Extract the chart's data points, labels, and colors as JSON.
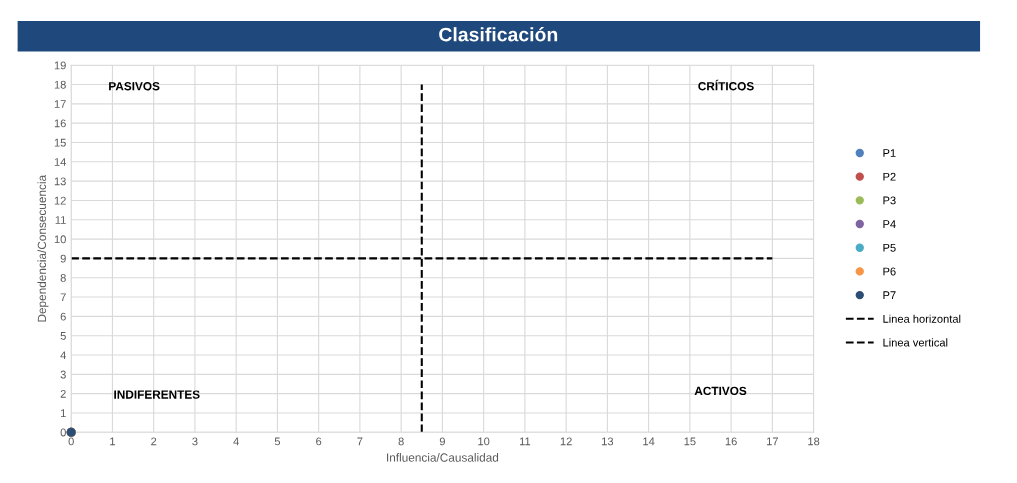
{
  "chart_data": {
    "type": "scatter",
    "title": "Clasificación",
    "xlabel": "Influencia/Causalidad",
    "ylabel": "Dependencia/Consecuencia",
    "xlim": [
      0,
      18
    ],
    "ylim": [
      0,
      19
    ],
    "xticks": [
      0,
      1,
      2,
      3,
      4,
      5,
      6,
      7,
      8,
      9,
      10,
      11,
      12,
      13,
      14,
      15,
      16,
      17,
      18
    ],
    "yticks": [
      0,
      1,
      2,
      3,
      4,
      5,
      6,
      7,
      8,
      9,
      10,
      11,
      12,
      13,
      14,
      15,
      16,
      17,
      18,
      19
    ],
    "grid": true,
    "legend": "right",
    "marker": "circle",
    "annotations": [
      "PASIVOS",
      "CRÍTICOS",
      "INDIFERENTES",
      "ACTIVOS"
    ],
    "series": [
      {
        "name": "P1",
        "color": "#4f81bd",
        "x": [
          0
        ],
        "values": [
          0
        ]
      },
      {
        "name": "P2",
        "color": "#c0504d",
        "x": [
          0
        ],
        "values": [
          0
        ]
      },
      {
        "name": "P3",
        "color": "#9bbb59",
        "x": [
          0
        ],
        "values": [
          0
        ]
      },
      {
        "name": "P4",
        "color": "#8064a2",
        "x": [
          0
        ],
        "values": [
          0
        ]
      },
      {
        "name": "P5",
        "color": "#4bacc6",
        "x": [
          0
        ],
        "values": [
          0
        ]
      },
      {
        "name": "P6",
        "color": "#f79646",
        "x": [
          0
        ],
        "values": [
          0
        ]
      },
      {
        "name": "P7",
        "color": "#2c4d75",
        "x": [
          0
        ],
        "values": [
          0
        ]
      },
      {
        "name": "Linea horizontal",
        "type": "line",
        "color": "#000000",
        "line_style": "dashed",
        "marker": "none",
        "x": [
          0,
          17
        ],
        "values": [
          9,
          9
        ]
      },
      {
        "name": "Linea vertical",
        "type": "line",
        "color": "#000000",
        "line_style": "dashed",
        "marker": "none",
        "x": [
          8.5,
          8.5
        ],
        "values": [
          0,
          18
        ]
      }
    ]
  }
}
